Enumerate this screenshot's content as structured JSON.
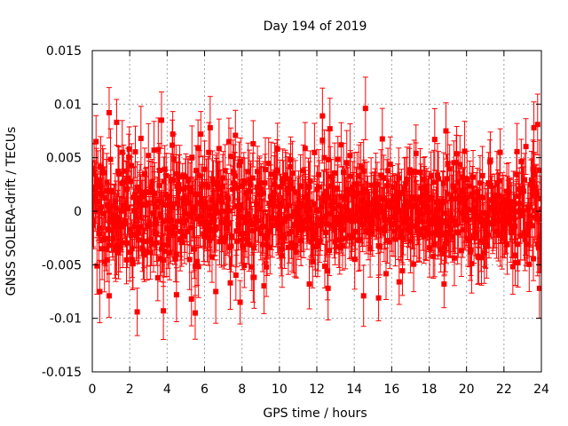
{
  "chart_data": {
    "type": "scatter",
    "title": "Day 194 of 2019",
    "xlabel": "GPS time / hours",
    "ylabel": "GNSS SOLERA-drift / TECUs",
    "xlim": [
      0,
      24
    ],
    "ylim": [
      -0.015,
      0.015
    ],
    "xticks": [
      0,
      2,
      4,
      6,
      8,
      10,
      12,
      14,
      16,
      18,
      20,
      22,
      24
    ],
    "xtick_labels": [
      "0",
      "2",
      "4",
      "6",
      "8",
      "10",
      "12",
      "14",
      "16",
      "18",
      "20",
      "22",
      "24"
    ],
    "yticks": [
      -0.015,
      -0.01,
      -0.005,
      0,
      0.005,
      0.01,
      0.015
    ],
    "ytick_labels": [
      "-0.015",
      "-0.01",
      "-0.005",
      "0",
      "0.005",
      "0.01",
      "0.015"
    ],
    "grid": true,
    "legend": "none",
    "series_color": "#ff0000",
    "series": [
      {
        "marker": "square",
        "error_bars": true,
        "sample_interval_hours": 0.025,
        "typical_error": 0.0025,
        "points": [
          [
            0.2,
            0.0065
          ],
          [
            0.4,
            -0.0075
          ],
          [
            0.9,
            0.0092
          ],
          [
            0.9,
            -0.0079
          ],
          [
            1.3,
            0.0083
          ],
          [
            1.6,
            0.0055
          ],
          [
            2.4,
            -0.0094
          ],
          [
            2.6,
            0.0068
          ],
          [
            3.3,
            0.0057
          ],
          [
            3.7,
            0.0085
          ],
          [
            3.8,
            -0.0093
          ],
          [
            4.3,
            0.0072
          ],
          [
            4.5,
            -0.0078
          ],
          [
            5.3,
            -0.0082
          ],
          [
            5.5,
            -0.0095
          ],
          [
            5.8,
            0.0072
          ],
          [
            6.3,
            0.0078
          ],
          [
            6.6,
            -0.0075
          ],
          [
            7.3,
            0.0065
          ],
          [
            7.9,
            -0.0085
          ],
          [
            8.6,
            0.0063
          ],
          [
            9.3,
            -0.0052
          ],
          [
            9.9,
            0.0058
          ],
          [
            10.6,
            0.0048
          ],
          [
            11.6,
            -0.0068
          ],
          [
            12.3,
            0.0089
          ],
          [
            12.6,
            -0.0072
          ],
          [
            12.7,
            0.0077
          ],
          [
            13.3,
            0.0062
          ],
          [
            14.5,
            -0.0079
          ],
          [
            14.6,
            0.0096
          ],
          [
            15.3,
            -0.0081
          ],
          [
            16.4,
            -0.0066
          ],
          [
            17.3,
            0.0054
          ],
          [
            18.3,
            0.0067
          ],
          [
            18.8,
            -0.0068
          ],
          [
            18.9,
            0.0075
          ],
          [
            19.9,
            0.0056
          ],
          [
            20.6,
            -0.0042
          ],
          [
            21.8,
            0.0055
          ],
          [
            22.6,
            -0.0048
          ],
          [
            23.6,
            0.0078
          ],
          [
            23.8,
            0.0081
          ],
          [
            23.9,
            -0.0072
          ]
        ]
      }
    ]
  }
}
